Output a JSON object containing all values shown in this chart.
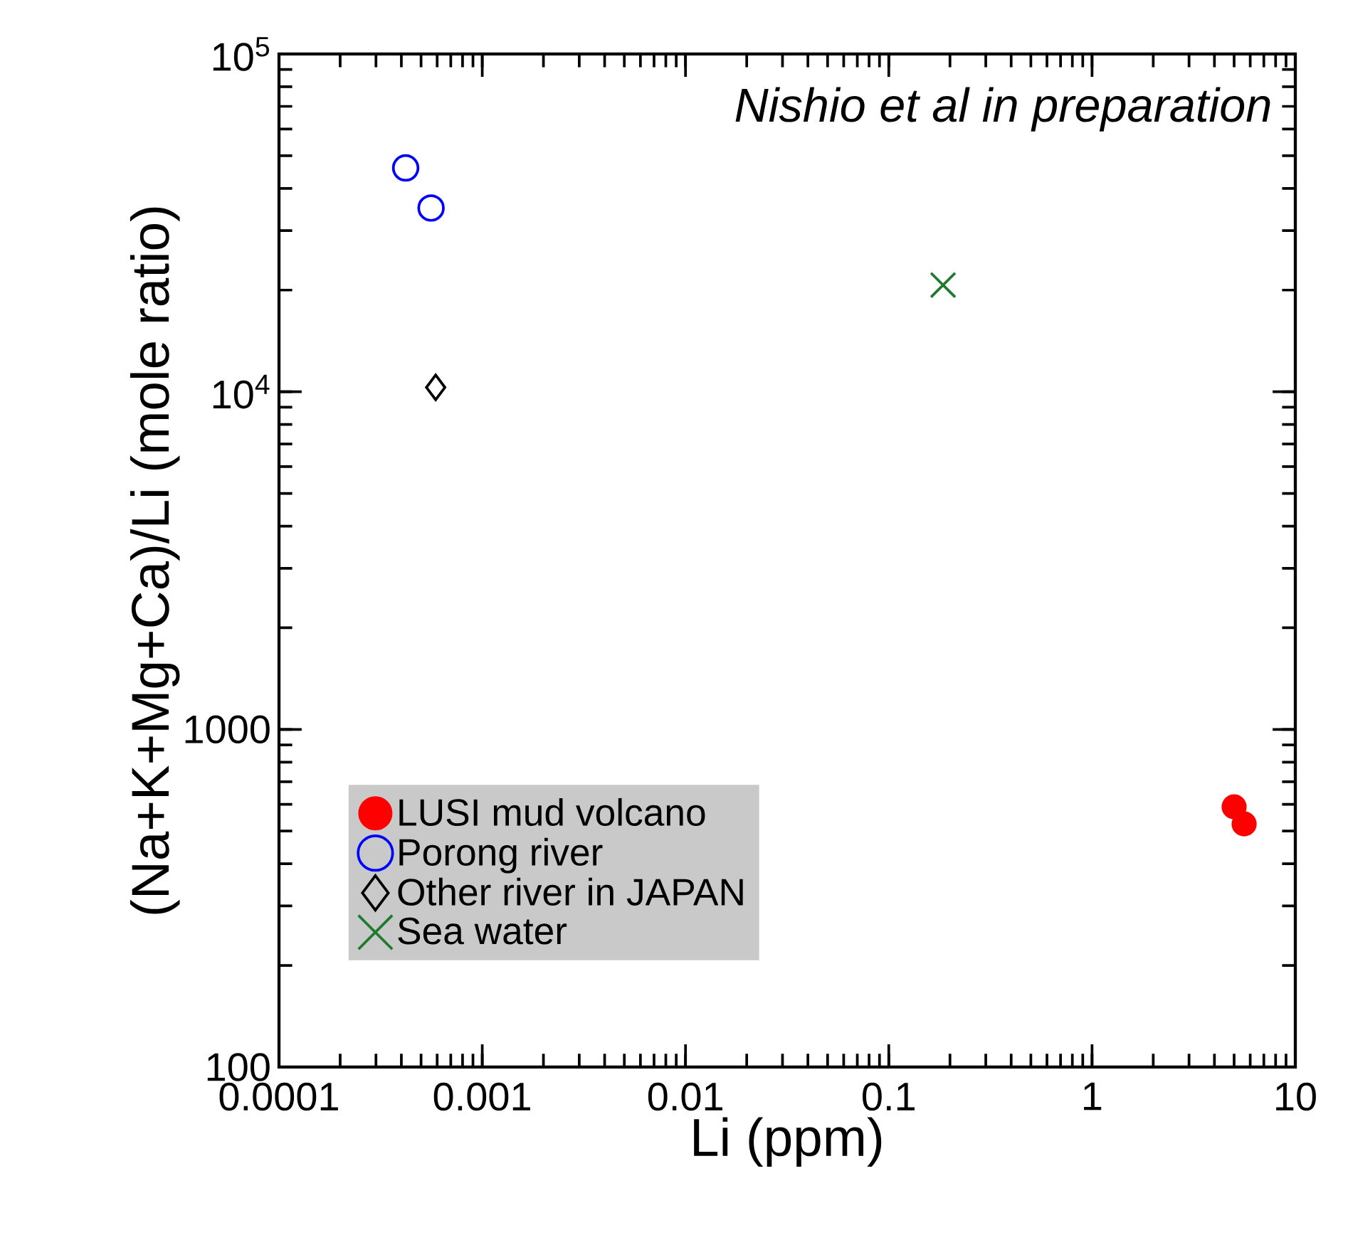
{
  "chart_data": {
    "type": "scatter",
    "xlabel": "Li (ppm)",
    "ylabel": "(Na+K+Mg+Ca)/Li (mole ratio)",
    "log": "xy",
    "xlim": [
      0.0001,
      10
    ],
    "ylim": [
      100,
      100000
    ],
    "xticks": [
      0.0001,
      0.001,
      0.01,
      0.1,
      1,
      10
    ],
    "yticks": [
      100,
      1000,
      {
        "value": 10000,
        "label": "10$^{4}$"
      },
      {
        "value": 100000,
        "label": "10$^{5}$"
      }
    ],
    "legend": "bottom left",
    "grid": false,
    "annotations": [
      "Nishio et al in preparation"
    ],
    "series": [
      {
        "name": "LUSI mud volcano",
        "color": "#ff0000",
        "marker": "circle",
        "x": [
          5.0,
          5.6
        ],
        "values": [
          590,
          525
        ]
      },
      {
        "name": "Porong river",
        "color": "#0000ff",
        "marker": "circle open",
        "x": [
          0.00042,
          0.00056
        ],
        "values": [
          46000,
          35000
        ]
      },
      {
        "name": "Other river in JAPAN",
        "color": "#000000",
        "marker": "diamond",
        "x": [
          0.00059
        ],
        "values": [
          10300
        ]
      },
      {
        "name": "Sea water",
        "color": "#1e7b2e",
        "marker": "cross",
        "x": [
          0.185
        ],
        "values": [
          20700
        ]
      }
    ]
  }
}
